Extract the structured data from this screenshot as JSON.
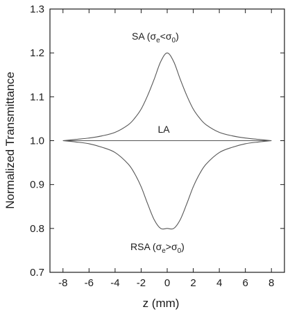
{
  "chart_data": {
    "type": "line",
    "xlabel": "z (mm)",
    "ylabel": "Normalized Transmittance",
    "xlim": [
      -9,
      9
    ],
    "ylim": [
      0.7,
      1.3
    ],
    "x_ticks": [
      -8,
      -6,
      -4,
      -2,
      0,
      2,
      4,
      6,
      8
    ],
    "x_tick_labels": [
      "-8",
      "-6",
      "-4",
      "-2",
      "0",
      "2",
      "4",
      "6",
      "8"
    ],
    "y_ticks": [
      0.7,
      0.8,
      0.9,
      1.0,
      1.1,
      1.2,
      1.3
    ],
    "y_tick_labels": [
      "0.7",
      "0.8",
      "0.9",
      "1.0",
      "1.1",
      "1.2",
      "1.3"
    ],
    "grid": false,
    "line_color": "#555555",
    "series": [
      {
        "key": "sa",
        "x": [
          -8,
          -7,
          -6,
          -5,
          -4,
          -3,
          -2.5,
          -2,
          -1.5,
          -1,
          -0.5,
          0,
          0.5,
          1,
          1.5,
          2,
          2.5,
          3,
          4,
          5,
          6,
          7,
          8
        ],
        "y": [
          1.0,
          1.003,
          1.006,
          1.011,
          1.019,
          1.036,
          1.051,
          1.072,
          1.103,
          1.14,
          1.18,
          1.2,
          1.18,
          1.14,
          1.103,
          1.072,
          1.051,
          1.036,
          1.019,
          1.011,
          1.006,
          1.003,
          1.0
        ]
      },
      {
        "key": "la",
        "x": [
          -8,
          8
        ],
        "y": [
          1.0,
          1.0
        ]
      },
      {
        "key": "rsa",
        "x": [
          -8,
          -7,
          -6,
          -5,
          -4,
          -3,
          -2.5,
          -2,
          -1.5,
          -1,
          -0.5,
          0,
          0.5,
          1,
          1.5,
          2,
          2.5,
          3,
          4,
          5,
          6,
          7,
          8
        ],
        "y": [
          1.0,
          0.997,
          0.993,
          0.985,
          0.973,
          0.947,
          0.925,
          0.895,
          0.856,
          0.82,
          0.8,
          0.8,
          0.8,
          0.82,
          0.856,
          0.895,
          0.925,
          0.947,
          0.973,
          0.985,
          0.993,
          0.997,
          1.0
        ]
      }
    ],
    "annotations": {
      "sa": {
        "main": "SA (σ",
        "sub1": "e",
        "mid": "<σ",
        "sub2": "0",
        "end": ")"
      },
      "la": {
        "text": "LA"
      },
      "rsa": {
        "main": "RSA (σ",
        "sub1": "e",
        "mid": ">σ",
        "sub2": "0",
        "end": ")"
      }
    }
  }
}
